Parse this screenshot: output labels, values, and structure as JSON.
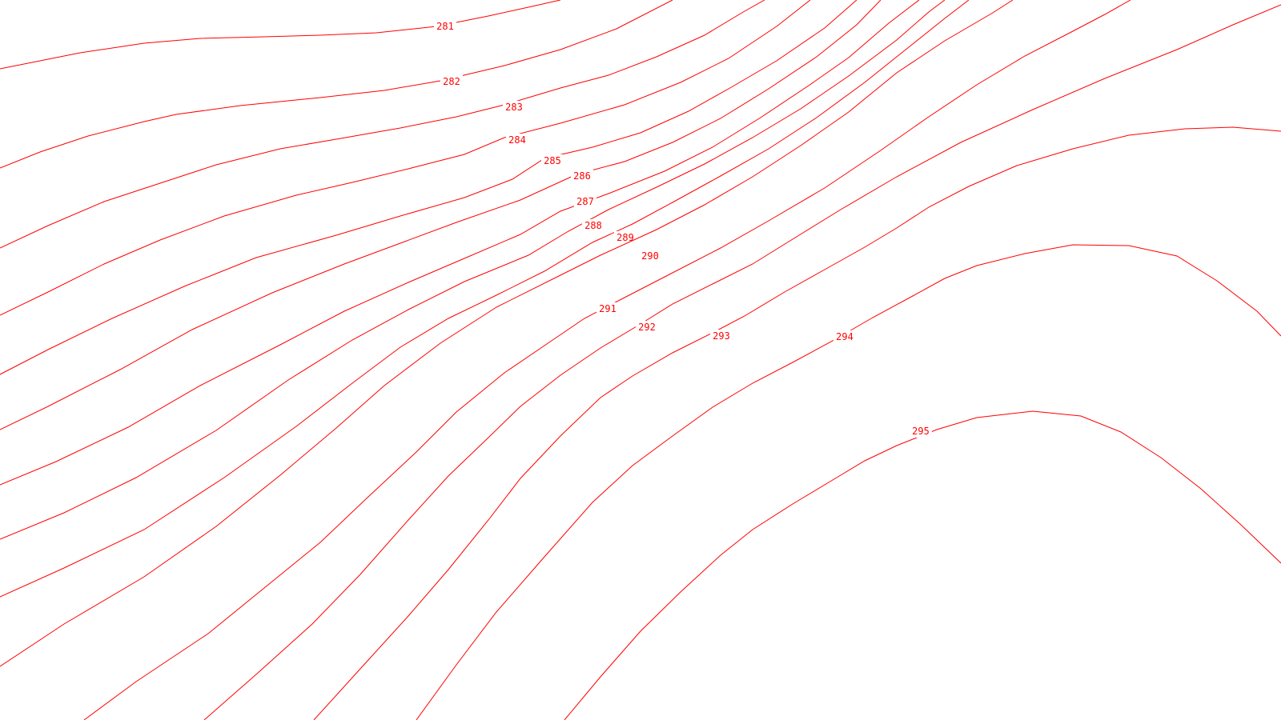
{
  "map": {
    "style": {
      "line_color": "#ff0000",
      "label_color": "#ff0000",
      "background": "#ffffff"
    },
    "contours": [
      {
        "value": "281"
      },
      {
        "value": "282"
      },
      {
        "value": "283"
      },
      {
        "value": "284"
      },
      {
        "value": "285"
      },
      {
        "value": "286"
      },
      {
        "value": "287"
      },
      {
        "value": "288"
      },
      {
        "value": "289"
      },
      {
        "value": "290"
      },
      {
        "value": "291"
      },
      {
        "value": "292"
      },
      {
        "value": "293"
      },
      {
        "value": "294"
      },
      {
        "value": "295"
      }
    ]
  }
}
